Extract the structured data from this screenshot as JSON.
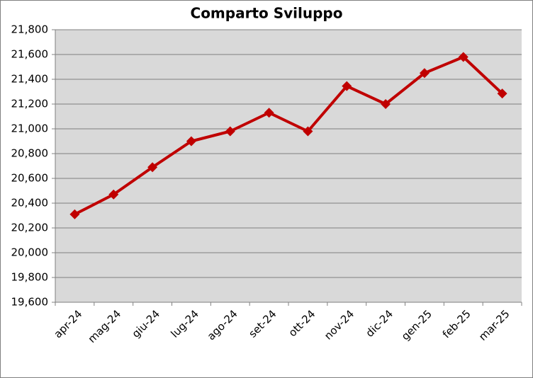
{
  "chart_data": {
    "type": "line",
    "title": "Comparto Sviluppo",
    "categories": [
      "apr-24",
      "mag-24",
      "giu-24",
      "lug-24",
      "ago-24",
      "set-24",
      "ott-24",
      "nov-24",
      "dic-24",
      "gen-25",
      "feb-25",
      "mar-25"
    ],
    "values": [
      20310,
      20470,
      20690,
      20900,
      20980,
      21130,
      20980,
      21345,
      21200,
      21450,
      21580,
      21285
    ],
    "color": "#c00000",
    "ylim": [
      19600,
      21800
    ],
    "yticks": [
      {
        "value": 19600,
        "label": "19,600"
      },
      {
        "value": 19800,
        "label": "19,800"
      },
      {
        "value": 20000,
        "label": "20,000"
      },
      {
        "value": 20200,
        "label": "20,200"
      },
      {
        "value": 20400,
        "label": "20,400"
      },
      {
        "value": 20600,
        "label": "20,600"
      },
      {
        "value": 20800,
        "label": "20,800"
      },
      {
        "value": 21000,
        "label": "21,000"
      },
      {
        "value": 21200,
        "label": "21,200"
      },
      {
        "value": 21400,
        "label": "21,400"
      },
      {
        "value": 21600,
        "label": "21,600"
      },
      {
        "value": 21800,
        "label": "21,800"
      }
    ],
    "grid": true
  }
}
